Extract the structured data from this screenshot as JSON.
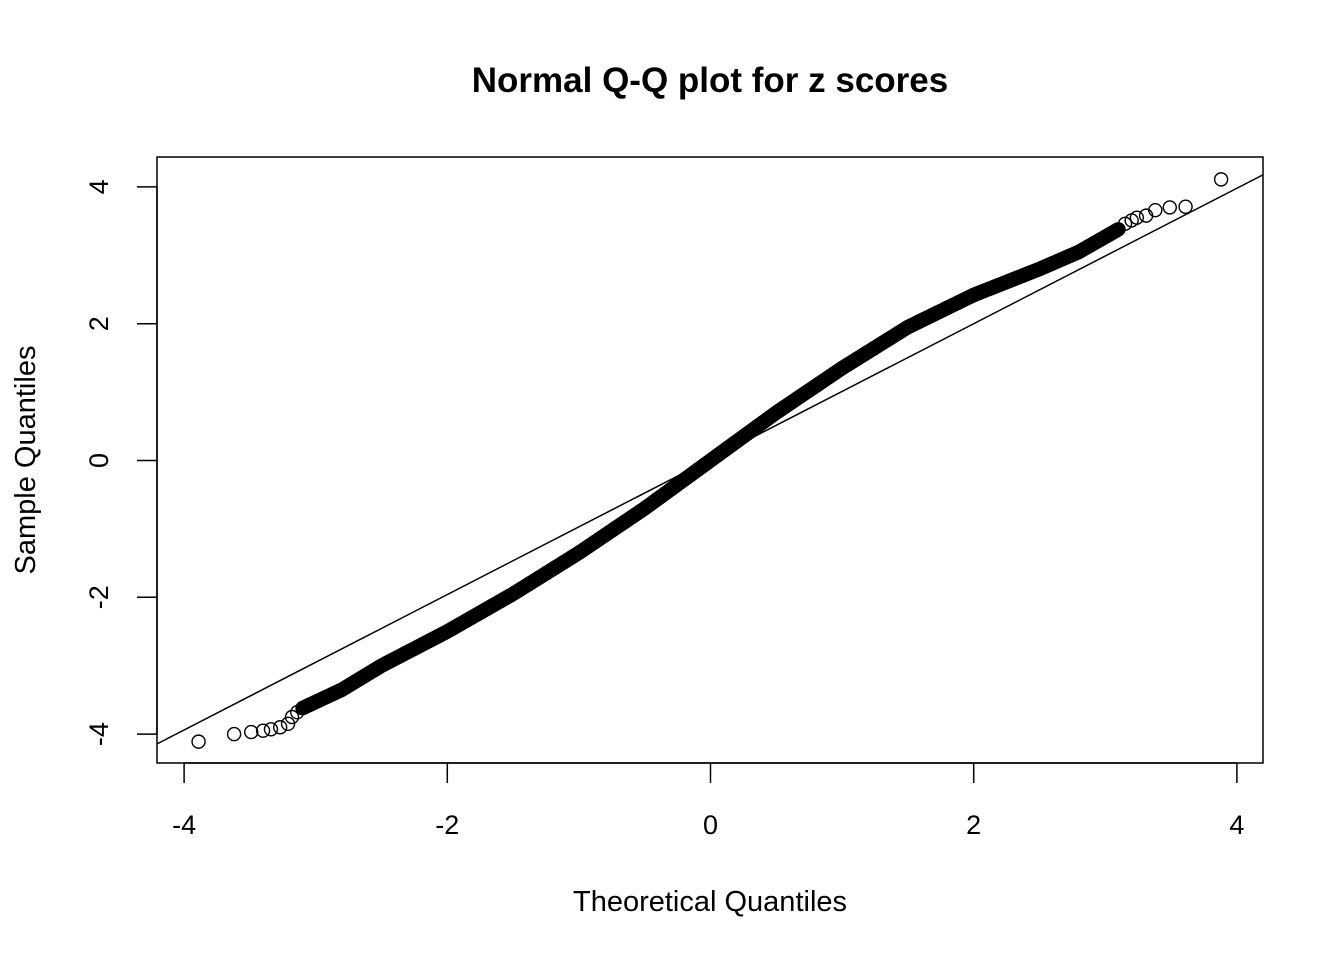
{
  "chart_data": {
    "type": "scatter",
    "title": "Normal Q-Q plot for z scores",
    "xlabel": "Theoretical Quantiles",
    "ylabel": "Sample Quantiles",
    "xlim": [
      -4.2,
      4.2
    ],
    "ylim": [
      -4.45,
      4.45
    ],
    "xticks": [
      -4,
      -2,
      0,
      2,
      4
    ],
    "yticks": [
      -4,
      -2,
      0,
      2,
      4
    ],
    "grid": false,
    "legend": "none",
    "marker": "open-circle",
    "color": "#000000",
    "reference_line": {
      "intercept": 0.02,
      "slope": 0.99
    },
    "tail_points_low": [
      [
        -3.89,
        -4.11
      ],
      [
        -3.62,
        -4.0
      ],
      [
        -3.49,
        -3.97
      ],
      [
        -3.4,
        -3.95
      ],
      [
        -3.34,
        -3.93
      ],
      [
        -3.27,
        -3.9
      ],
      [
        -3.21,
        -3.85
      ],
      [
        -3.18,
        -3.75
      ],
      [
        -3.14,
        -3.68
      ]
    ],
    "main_curve": [
      [
        -3.1,
        -3.62
      ],
      [
        -2.8,
        -3.35
      ],
      [
        -2.5,
        -3.0
      ],
      [
        -2.0,
        -2.5
      ],
      [
        -1.5,
        -1.95
      ],
      [
        -1.0,
        -1.35
      ],
      [
        -0.5,
        -0.7
      ],
      [
        0,
        0
      ],
      [
        0.5,
        0.7
      ],
      [
        1.0,
        1.35
      ],
      [
        1.5,
        1.95
      ],
      [
        2.0,
        2.42
      ],
      [
        2.5,
        2.8
      ],
      [
        2.8,
        3.05
      ],
      [
        3.1,
        3.38
      ]
    ],
    "tail_points_high": [
      [
        3.15,
        3.46
      ],
      [
        3.2,
        3.51
      ],
      [
        3.24,
        3.55
      ],
      [
        3.31,
        3.58
      ],
      [
        3.38,
        3.66
      ],
      [
        3.49,
        3.7
      ],
      [
        3.61,
        3.71
      ],
      [
        3.88,
        4.11
      ]
    ]
  }
}
